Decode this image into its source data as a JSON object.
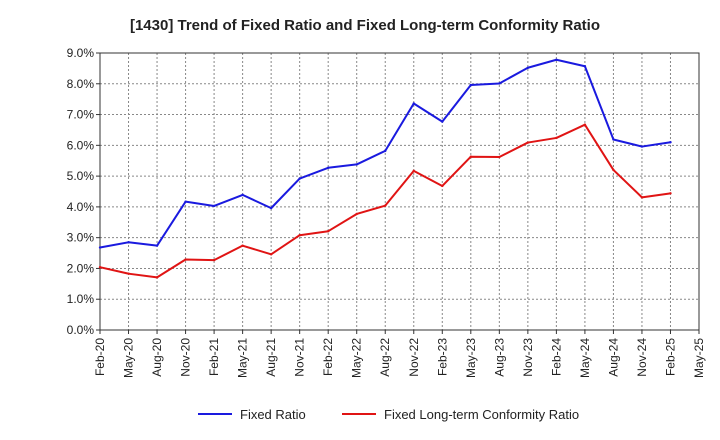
{
  "chart_data": {
    "type": "line",
    "title": "[1430]  Trend of Fixed Ratio and Fixed Long-term Conformity Ratio",
    "xlabel": "",
    "ylabel": "",
    "ylim": [
      0,
      9
    ],
    "y_ticks": [
      "0.0%",
      "1.0%",
      "2.0%",
      "3.0%",
      "4.0%",
      "5.0%",
      "6.0%",
      "7.0%",
      "8.0%",
      "9.0%"
    ],
    "categories": [
      "Feb-20",
      "May-20",
      "Aug-20",
      "Nov-20",
      "Feb-21",
      "May-21",
      "Aug-21",
      "Nov-21",
      "Feb-22",
      "May-22",
      "Aug-22",
      "Nov-22",
      "Feb-23",
      "May-23",
      "Aug-23",
      "Nov-23",
      "Feb-24",
      "May-24",
      "Aug-24",
      "Nov-24",
      "Feb-25",
      "May-25"
    ],
    "grid": true,
    "legend_position": "bottom",
    "series": [
      {
        "name": "Fixed Ratio",
        "color": "#1a1adf",
        "values": [
          2.68,
          2.85,
          2.74,
          4.17,
          4.03,
          4.39,
          3.96,
          4.92,
          5.27,
          5.38,
          5.82,
          7.36,
          6.77,
          7.96,
          8.01,
          8.52,
          8.78,
          8.57,
          6.19,
          5.96,
          6.1,
          null
        ]
      },
      {
        "name": "Fixed Long-term Conformity Ratio",
        "color": "#e01414",
        "values": [
          2.04,
          1.83,
          1.71,
          2.29,
          2.27,
          2.74,
          2.46,
          3.08,
          3.21,
          3.77,
          4.04,
          5.17,
          4.68,
          5.63,
          5.62,
          6.09,
          6.24,
          6.67,
          5.2,
          4.31,
          4.44,
          null
        ]
      }
    ]
  }
}
